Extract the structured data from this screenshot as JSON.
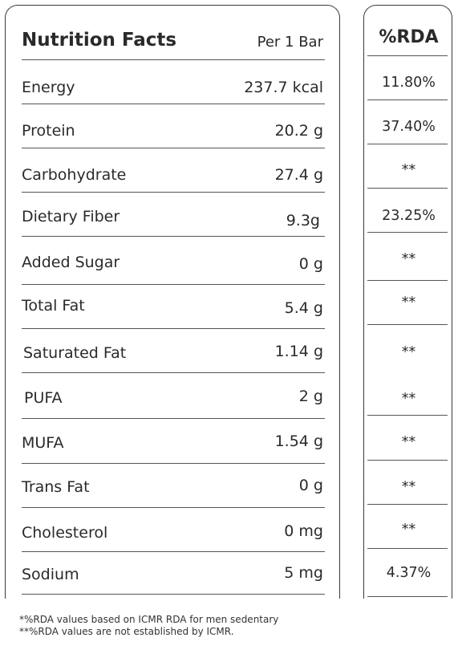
{
  "header": {
    "title": "Nutrition Facts",
    "serving": "Per 1 Bar",
    "rda_header": "%RDA"
  },
  "rows": [
    {
      "label": "Energy",
      "value": "237.7 kcal",
      "rda": "11.80%"
    },
    {
      "label": "Protein",
      "value": "20.2 g",
      "rda": "37.40%"
    },
    {
      "label": "Carbohydrate",
      "value": "27.4 g",
      "rda": "**"
    },
    {
      "label": "Dietary Fiber",
      "value": "9.3g",
      "rda": "23.25%"
    },
    {
      "label": "Added Sugar",
      "value": "0 g",
      "rda": "**"
    },
    {
      "label": "Total Fat",
      "value": "5.4 g",
      "rda": "**"
    },
    {
      "label": "Saturated Fat",
      "value": "1.14 g",
      "rda": "**"
    },
    {
      "label": "PUFA",
      "value": "2 g",
      "rda": "**"
    },
    {
      "label": "MUFA",
      "value": "1.54 g",
      "rda": "**"
    },
    {
      "label": "Trans Fat",
      "value": "0 g",
      "rda": "**"
    },
    {
      "label": "Cholesterol",
      "value": "0 mg",
      "rda": "**"
    },
    {
      "label": "Sodium",
      "value": "5 mg",
      "rda": "4.37%"
    }
  ],
  "footnotes": [
    "*%RDA values based on ICMR RDA for men sedentary",
    "**%RDA values are not established by ICMR."
  ]
}
